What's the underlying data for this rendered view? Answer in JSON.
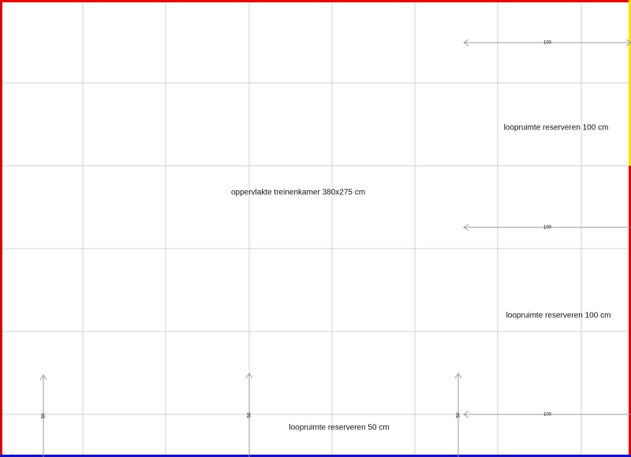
{
  "labels": [
    "oppervlakte treinenkamer 380x275 cm",
    "loopruimte reserveren 100 cm",
    "loopruimte reserveren 100 cm",
    "loopruimte reserveren 50 cm"
  ],
  "dimensions": {
    "horizontal": [
      "100",
      "100",
      "100"
    ],
    "vertical": [
      "50",
      "50",
      "50"
    ]
  }
}
